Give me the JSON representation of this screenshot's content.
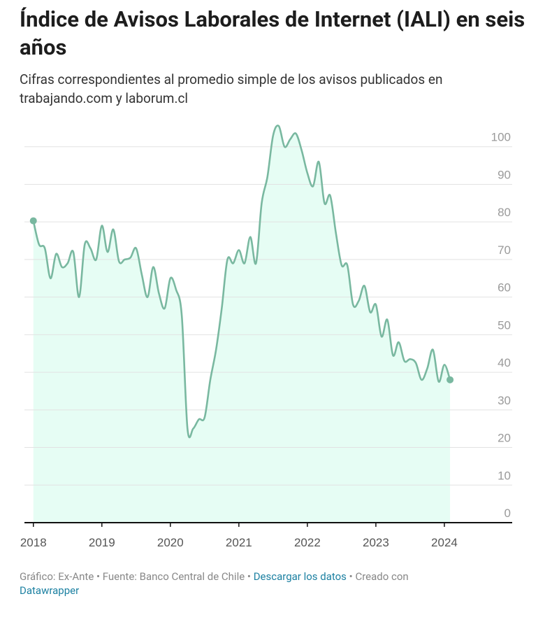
{
  "chart_data": {
    "type": "line",
    "title": "Índice de Avisos Laborales de Internet (IALI) en seis años",
    "subtitle": "Cifras correspondientes al promedio simple de los avisos publicados en trabajando.com y laborum.cl",
    "x": [
      2018,
      2018.083,
      2018.167,
      2018.25,
      2018.333,
      2018.417,
      2018.5,
      2018.583,
      2018.667,
      2018.75,
      2018.833,
      2018.917,
      2019,
      2019.083,
      2019.167,
      2019.25,
      2019.333,
      2019.417,
      2019.5,
      2019.583,
      2019.667,
      2019.75,
      2019.833,
      2019.917,
      2020,
      2020.083,
      2020.167,
      2020.25,
      2020.333,
      2020.417,
      2020.5,
      2020.583,
      2020.667,
      2020.75,
      2020.833,
      2020.917,
      2021,
      2021.083,
      2021.167,
      2021.25,
      2021.333,
      2021.417,
      2021.5,
      2021.583,
      2021.667,
      2021.75,
      2021.833,
      2021.917,
      2022,
      2022.083,
      2022.167,
      2022.25,
      2022.333,
      2022.417,
      2022.5,
      2022.583,
      2022.667,
      2022.75,
      2022.833,
      2022.917,
      2023,
      2023.083,
      2023.167,
      2023.25,
      2023.333,
      2023.417,
      2023.5,
      2023.583,
      2023.667,
      2023.75,
      2023.833,
      2023.917,
      2024,
      2024.083
    ],
    "series": [
      {
        "color": "#79b8a0",
        "fill": "#e6fdf4",
        "values": [
          80.3,
          74,
          73,
          65,
          71.5,
          68,
          69,
          72,
          60,
          74,
          73,
          70,
          79,
          72,
          78,
          69.5,
          70,
          70.5,
          73,
          66,
          60,
          68,
          61,
          57,
          65,
          62,
          55,
          25,
          25,
          27.5,
          28,
          38,
          46,
          57,
          70,
          69,
          72.5,
          69,
          76,
          69,
          85,
          92,
          103,
          105.5,
          100,
          102,
          103.5,
          99,
          93,
          89.5,
          96,
          85,
          87,
          77,
          68.5,
          68.5,
          58,
          59,
          63,
          56,
          58,
          49.5,
          54,
          44.5,
          48,
          43,
          43.5,
          42.5,
          38,
          41,
          46,
          37.5,
          42,
          38
        ]
      }
    ],
    "xlim": [
      2017.87,
      2024.99
    ],
    "xticks": [
      2018,
      2019,
      2020,
      2021,
      2022,
      2023,
      2024
    ],
    "ylim": [
      0,
      110
    ],
    "yticks": [
      0,
      10,
      20,
      30,
      40,
      50,
      60,
      70,
      80,
      90,
      100
    ],
    "grid": true
  },
  "footer": {
    "source": "Gráfico: Ex-Ante • Fuente: Banco Central de Chile •",
    "download": "Descargar los datos",
    "created": "• Creado con",
    "tool": "Datawrapper"
  }
}
